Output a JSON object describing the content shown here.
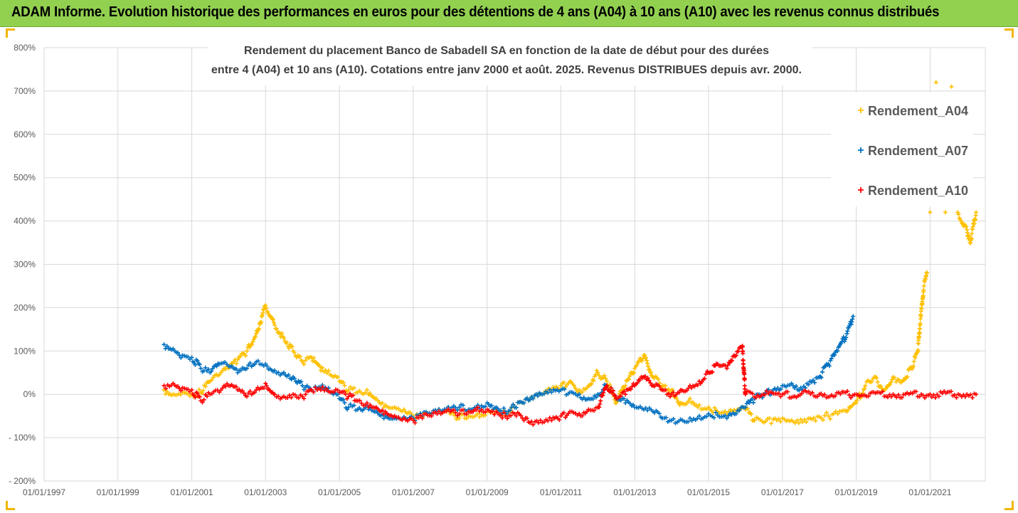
{
  "header": {
    "title": "ADAM Informe. Evolution historique des performances en euros pour des détentions de 4 ans (A04) à 10 ans (A10) avec les revenus connus distribués"
  },
  "chart_data": {
    "type": "scatter",
    "title_line1": "Rendement du placement Banco de Sabadell SA en fonction de la date de début pour des durées",
    "title_line2": "entre 4 (A04) et 10 ans (A10). Cotations entre janv 2000 et août. 2025. Revenus DISTRIBUES depuis avr. 2000.",
    "y_ticks": [
      "800%",
      "700%",
      "600%",
      "500%",
      "400%",
      "300%",
      "200%",
      "100%",
      "0%",
      "- 100%",
      "- 200%"
    ],
    "ylim": [
      -200,
      800
    ],
    "x_ticks": [
      "01/01/1997",
      "01/01/1999",
      "01/01/2001",
      "01/01/2003",
      "01/01/2005",
      "01/01/2007",
      "01/01/2009",
      "01/01/2011",
      "01/01/2013",
      "01/01/2015",
      "01/01/2017",
      "01/01/2019",
      "01/01/2021"
    ],
    "xlim": [
      "1997-01-01",
      "2022-07-01"
    ],
    "grid": true,
    "legend_position": "top-right",
    "colors": {
      "Rendement_A04": "#ffc000",
      "Rendement_A07": "#0070c0",
      "Rendement_A10": "#ff0000"
    },
    "series": [
      {
        "name": "Rendement_A04",
        "points": [
          [
            "2000-04-01",
            10
          ],
          [
            "2000-07-01",
            0
          ],
          [
            "2000-10-01",
            5
          ],
          [
            "2001-01-01",
            0
          ],
          [
            "2001-04-01",
            5
          ],
          [
            "2001-07-01",
            30
          ],
          [
            "2001-10-01",
            45
          ],
          [
            "2002-01-01",
            60
          ],
          [
            "2002-04-01",
            80
          ],
          [
            "2002-07-01",
            100
          ],
          [
            "2002-10-01",
            140
          ],
          [
            "2003-01-01",
            205
          ],
          [
            "2003-04-01",
            160
          ],
          [
            "2003-07-01",
            130
          ],
          [
            "2003-10-01",
            100
          ],
          [
            "2004-01-01",
            75
          ],
          [
            "2004-04-01",
            85
          ],
          [
            "2004-07-01",
            55
          ],
          [
            "2004-10-01",
            45
          ],
          [
            "2005-01-01",
            30
          ],
          [
            "2005-04-01",
            10
          ],
          [
            "2005-07-01",
            5
          ],
          [
            "2005-10-01",
            10
          ],
          [
            "2006-01-01",
            -10
          ],
          [
            "2006-04-01",
            -25
          ],
          [
            "2006-07-01",
            -30
          ],
          [
            "2006-10-01",
            -35
          ],
          [
            "2007-01-01",
            -50
          ],
          [
            "2007-04-01",
            -52
          ],
          [
            "2007-07-01",
            -45
          ],
          [
            "2007-10-01",
            -40
          ],
          [
            "2008-01-01",
            -45
          ],
          [
            "2008-04-01",
            -55
          ],
          [
            "2008-07-01",
            -50
          ],
          [
            "2008-10-01",
            -45
          ],
          [
            "2009-01-01",
            -40
          ],
          [
            "2009-04-01",
            -35
          ],
          [
            "2009-07-01",
            -45
          ],
          [
            "2009-10-01",
            -30
          ],
          [
            "2010-01-01",
            -20
          ],
          [
            "2010-04-01",
            -10
          ],
          [
            "2010-07-01",
            0
          ],
          [
            "2010-10-01",
            10
          ],
          [
            "2011-01-01",
            20
          ],
          [
            "2011-04-01",
            30
          ],
          [
            "2011-07-01",
            10
          ],
          [
            "2011-10-01",
            20
          ],
          [
            "2012-01-01",
            50
          ],
          [
            "2012-04-01",
            30
          ],
          [
            "2012-07-01",
            -20
          ],
          [
            "2012-10-01",
            20
          ],
          [
            "2013-01-01",
            60
          ],
          [
            "2013-04-01",
            90
          ],
          [
            "2013-07-01",
            40
          ],
          [
            "2013-10-01",
            20
          ],
          [
            "2014-01-01",
            10
          ],
          [
            "2014-04-01",
            -20
          ],
          [
            "2014-07-01",
            -10
          ],
          [
            "2014-10-01",
            -25
          ],
          [
            "2015-01-01",
            -30
          ],
          [
            "2015-04-01",
            -40
          ],
          [
            "2015-07-01",
            -45
          ],
          [
            "2015-10-01",
            -40
          ],
          [
            "2016-01-01",
            -35
          ],
          [
            "2016-04-01",
            -60
          ],
          [
            "2016-07-01",
            -65
          ],
          [
            "2016-10-01",
            -58
          ],
          [
            "2017-01-01",
            -55
          ],
          [
            "2017-04-01",
            -60
          ],
          [
            "2017-07-01",
            -58
          ],
          [
            "2017-10-01",
            -55
          ],
          [
            "2018-01-01",
            -52
          ],
          [
            "2018-04-01",
            -50
          ],
          [
            "2018-07-01",
            -45
          ],
          [
            "2018-10-01",
            -40
          ],
          [
            "2019-01-01",
            -20
          ],
          [
            "2019-04-01",
            20
          ],
          [
            "2019-07-01",
            40
          ],
          [
            "2019-10-01",
            10
          ],
          [
            "2020-01-01",
            40
          ],
          [
            "2020-04-01",
            30
          ],
          [
            "2020-07-01",
            60
          ],
          [
            "2020-09-01",
            100
          ],
          [
            "2020-10-01",
            180
          ],
          [
            "2020-11-01",
            250
          ],
          [
            "2020-12-01",
            280
          ],
          [
            "2021-01-01",
            420
          ],
          [
            "2021-03-01",
            720
          ],
          [
            "2021-06-01",
            420
          ],
          [
            "2021-08-01",
            710
          ],
          [
            "2021-10-01",
            420
          ],
          [
            "2022-01-01",
            380
          ],
          [
            "2022-02-01",
            350
          ],
          [
            "2022-04-01",
            420
          ]
        ]
      },
      {
        "name": "Rendement_A07",
        "points": [
          [
            "2000-04-01",
            115
          ],
          [
            "2000-07-01",
            105
          ],
          [
            "2000-10-01",
            90
          ],
          [
            "2001-01-01",
            85
          ],
          [
            "2001-04-01",
            60
          ],
          [
            "2001-07-01",
            50
          ],
          [
            "2001-10-01",
            70
          ],
          [
            "2002-01-01",
            65
          ],
          [
            "2002-04-01",
            50
          ],
          [
            "2002-07-01",
            60
          ],
          [
            "2002-10-01",
            75
          ],
          [
            "2003-01-01",
            70
          ],
          [
            "2003-04-01",
            55
          ],
          [
            "2003-07-01",
            50
          ],
          [
            "2003-10-01",
            40
          ],
          [
            "2004-01-01",
            20
          ],
          [
            "2004-04-01",
            10
          ],
          [
            "2004-07-01",
            15
          ],
          [
            "2004-10-01",
            5
          ],
          [
            "2005-01-01",
            -10
          ],
          [
            "2005-04-01",
            -30
          ],
          [
            "2005-07-01",
            -35
          ],
          [
            "2005-10-01",
            -25
          ],
          [
            "2006-01-01",
            -40
          ],
          [
            "2006-04-01",
            -50
          ],
          [
            "2006-07-01",
            -55
          ],
          [
            "2006-10-01",
            -52
          ],
          [
            "2007-01-01",
            -55
          ],
          [
            "2007-04-01",
            -50
          ],
          [
            "2007-07-01",
            -45
          ],
          [
            "2007-10-01",
            -40
          ],
          [
            "2008-01-01",
            -35
          ],
          [
            "2008-04-01",
            -30
          ],
          [
            "2008-07-01",
            -35
          ],
          [
            "2008-10-01",
            -25
          ],
          [
            "2009-01-01",
            -20
          ],
          [
            "2009-04-01",
            -30
          ],
          [
            "2009-07-01",
            -40
          ],
          [
            "2009-10-01",
            -30
          ],
          [
            "2010-01-01",
            -20
          ],
          [
            "2010-04-01",
            -10
          ],
          [
            "2010-07-01",
            0
          ],
          [
            "2010-10-01",
            5
          ],
          [
            "2011-01-01",
            10
          ],
          [
            "2011-04-01",
            5
          ],
          [
            "2011-07-01",
            0
          ],
          [
            "2011-10-01",
            -10
          ],
          [
            "2012-01-01",
            0
          ],
          [
            "2012-04-01",
            20
          ],
          [
            "2012-07-01",
            -10
          ],
          [
            "2012-10-01",
            -20
          ],
          [
            "2013-01-01",
            -30
          ],
          [
            "2013-04-01",
            -35
          ],
          [
            "2013-07-01",
            -40
          ],
          [
            "2013-10-01",
            -55
          ],
          [
            "2014-01-01",
            -60
          ],
          [
            "2014-04-01",
            -58
          ],
          [
            "2014-07-01",
            -55
          ],
          [
            "2014-10-01",
            -50
          ],
          [
            "2015-01-01",
            -45
          ],
          [
            "2015-04-01",
            -48
          ],
          [
            "2015-07-01",
            -55
          ],
          [
            "2015-10-01",
            -45
          ],
          [
            "2016-01-01",
            -30
          ],
          [
            "2016-04-01",
            -10
          ],
          [
            "2016-07-01",
            0
          ],
          [
            "2016-10-01",
            10
          ],
          [
            "2017-01-01",
            20
          ],
          [
            "2017-04-01",
            25
          ],
          [
            "2017-07-01",
            15
          ],
          [
            "2017-10-01",
            30
          ],
          [
            "2018-01-01",
            40
          ],
          [
            "2018-04-01",
            70
          ],
          [
            "2018-07-01",
            100
          ],
          [
            "2018-10-01",
            140
          ],
          [
            "2018-12-01",
            180
          ]
        ]
      },
      {
        "name": "Rendement_A10",
        "points": [
          [
            "2000-04-01",
            20
          ],
          [
            "2000-07-01",
            25
          ],
          [
            "2000-10-01",
            15
          ],
          [
            "2001-01-01",
            10
          ],
          [
            "2001-04-01",
            -15
          ],
          [
            "2001-07-01",
            0
          ],
          [
            "2001-10-01",
            5
          ],
          [
            "2002-01-01",
            20
          ],
          [
            "2002-04-01",
            10
          ],
          [
            "2002-07-01",
            -5
          ],
          [
            "2002-10-01",
            10
          ],
          [
            "2003-01-01",
            25
          ],
          [
            "2003-04-01",
            0
          ],
          [
            "2003-07-01",
            -5
          ],
          [
            "2003-10-01",
            0
          ],
          [
            "2004-01-01",
            -5
          ],
          [
            "2004-04-01",
            10
          ],
          [
            "2004-07-01",
            10
          ],
          [
            "2004-10-01",
            5
          ],
          [
            "2005-01-01",
            5
          ],
          [
            "2005-04-01",
            -5
          ],
          [
            "2005-07-01",
            -15
          ],
          [
            "2005-10-01",
            -20
          ],
          [
            "2006-01-01",
            -30
          ],
          [
            "2006-04-01",
            -40
          ],
          [
            "2006-07-01",
            -50
          ],
          [
            "2006-10-01",
            -55
          ],
          [
            "2007-01-01",
            -60
          ],
          [
            "2007-04-01",
            -55
          ],
          [
            "2007-07-01",
            -50
          ],
          [
            "2007-10-01",
            -45
          ],
          [
            "2008-01-01",
            -40
          ],
          [
            "2008-04-01",
            -45
          ],
          [
            "2008-07-01",
            -40
          ],
          [
            "2008-10-01",
            -30
          ],
          [
            "2009-01-01",
            -35
          ],
          [
            "2009-04-01",
            -40
          ],
          [
            "2009-07-01",
            -50
          ],
          [
            "2009-10-01",
            -45
          ],
          [
            "2010-01-01",
            -60
          ],
          [
            "2010-04-01",
            -70
          ],
          [
            "2010-07-01",
            -65
          ],
          [
            "2010-10-01",
            -60
          ],
          [
            "2011-01-01",
            -50
          ],
          [
            "2011-04-01",
            -40
          ],
          [
            "2011-07-01",
            -45
          ],
          [
            "2011-10-01",
            -35
          ],
          [
            "2012-01-01",
            -30
          ],
          [
            "2012-04-01",
            20
          ],
          [
            "2012-07-01",
            -10
          ],
          [
            "2012-10-01",
            0
          ],
          [
            "2013-01-01",
            20
          ],
          [
            "2013-04-01",
            40
          ],
          [
            "2013-07-01",
            20
          ],
          [
            "2013-10-01",
            10
          ],
          [
            "2014-01-01",
            0
          ],
          [
            "2014-04-01",
            10
          ],
          [
            "2014-07-01",
            20
          ],
          [
            "2014-10-01",
            30
          ],
          [
            "2015-01-01",
            50
          ],
          [
            "2015-04-01",
            70
          ],
          [
            "2015-07-01",
            60
          ],
          [
            "2015-10-01",
            90
          ],
          [
            "2015-12-01",
            110
          ],
          [
            "2016-01-01",
            0
          ],
          [
            "2017-01-01",
            0
          ],
          [
            "2018-01-01",
            0
          ],
          [
            "2019-01-01",
            0
          ],
          [
            "2020-01-01",
            0
          ],
          [
            "2021-01-01",
            0
          ],
          [
            "2022-01-01",
            0
          ],
          [
            "2022-04-01",
            0
          ]
        ]
      }
    ]
  }
}
